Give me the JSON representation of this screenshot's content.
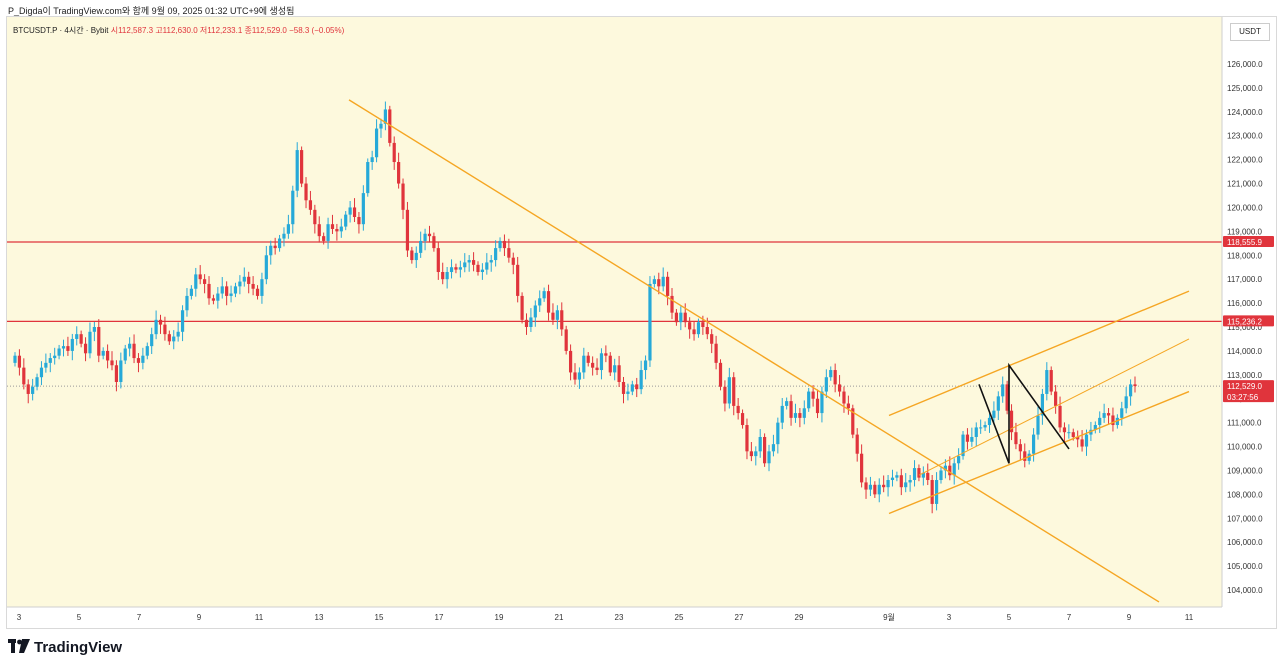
{
  "header": {
    "caption": "P_Digda이 TradingView.com와 함께 9월 09, 2025 01:32 UTC+9에 생성됨"
  },
  "symbol_bar": {
    "symbol": "BTCUSDT.P · 4시간 · Bybit",
    "open": "시112,587.3",
    "high": "고112,630.0",
    "low": "저112,233.1",
    "close": "종112,529.0",
    "change": "−58.3 (−0.05%)"
  },
  "price_axis": {
    "unit": "USDT",
    "ticks": [
      "126,000.0",
      "125,000.0",
      "124,000.0",
      "123,000.0",
      "122,000.0",
      "121,000.0",
      "120,000.0",
      "119,000.0",
      "118,000.0",
      "117,000.0",
      "116,000.0",
      "115,000.0",
      "114,000.0",
      "113,000.0",
      "112,000.0",
      "111,000.0",
      "110,000.0",
      "109,000.0",
      "108,000.0",
      "107,000.0",
      "106,000.0",
      "105,000.0",
      "104,000.0"
    ],
    "labels": {
      "resistance_top": "118,555.9",
      "resistance_mid": "115,236.2",
      "last_price": "112,529.0",
      "countdown": "03:27:56"
    }
  },
  "time_axis": {
    "ticks": [
      "3",
      "5",
      "7",
      "9",
      "11",
      "13",
      "15",
      "17",
      "19",
      "21",
      "23",
      "25",
      "27",
      "29",
      "9월",
      "3",
      "5",
      "7",
      "9",
      "11"
    ]
  },
  "brand": {
    "name": "TradingView"
  },
  "colors": {
    "up": "#26a9d8",
    "down": "#e0343c",
    "trendline": "#f5a623",
    "level": "#e0343c",
    "background": "#fdf9dd"
  },
  "chart_data": {
    "type": "candlestick",
    "symbol": "BTCUSDT.P",
    "interval": "4h",
    "ylim": [
      103400,
      126600
    ],
    "x_range_days": [
      "Aug 3",
      "Sep 11"
    ],
    "horizontal_levels": [
      118555.9,
      115236.2
    ],
    "last_price": 112529.0,
    "drawings": [
      {
        "kind": "descending trendline",
        "from": [
          "Aug 14",
          "124500"
        ],
        "to": [
          "Sep 10",
          "103500"
        ]
      },
      {
        "kind": "rising channel upper",
        "from": [
          "Sep 1",
          "111300"
        ],
        "to": [
          "Sep 11",
          "116500"
        ]
      },
      {
        "kind": "rising channel lower",
        "from": [
          "Sep 1",
          "107200"
        ],
        "to": [
          "Sep 11",
          "112300"
        ]
      },
      {
        "kind": "channel midline",
        "from": [
          "Sep 2",
          "108800"
        ],
        "to": [
          "Sep 11",
          "114500"
        ]
      },
      {
        "kind": "zigzag",
        "points": [
          [
            "Sep 4",
            "112600"
          ],
          [
            "Sep 5",
            "109300"
          ],
          [
            "Sep 5",
            "113400"
          ],
          [
            "Sep 7",
            "109900"
          ]
        ]
      }
    ],
    "closes": [
      113800,
      113300,
      112600,
      112200,
      112500,
      112900,
      113300,
      113500,
      113700,
      113800,
      114100,
      114200,
      114000,
      114500,
      114700,
      114300,
      113900,
      114800,
      115000,
      113800,
      114000,
      113600,
      113400,
      112700,
      113600,
      114100,
      114300,
      113700,
      113500,
      113800,
      114200,
      114700,
      115300,
      115100,
      114700,
      114400,
      114600,
      114800,
      115700,
      116300,
      116600,
      117200,
      117000,
      116800,
      116200,
      116100,
      116400,
      116700,
      116300,
      116400,
      116700,
      116900,
      117100,
      116800,
      116600,
      116300,
      117000,
      118000,
      118400,
      118300,
      118700,
      118900,
      119300,
      120700,
      122400,
      121000,
      120300,
      119900,
      119300,
      118800,
      118600,
      119300,
      119100,
      119000,
      119200,
      119700,
      120000,
      119600,
      119300,
      120600,
      121900,
      122100,
      123300,
      123500,
      124100,
      122700,
      121900,
      121000,
      119900,
      118200,
      117800,
      118100,
      118600,
      118900,
      118800,
      118300,
      117300,
      117000,
      117300,
      117500,
      117400,
      117500,
      117700,
      117800,
      117600,
      117300,
      117400,
      117700,
      117800,
      118300,
      118600,
      118300,
      117900,
      117600,
      116300,
      115300,
      115000,
      115400,
      115900,
      116200,
      116500,
      115600,
      115300,
      115700,
      114900,
      114000,
      113100,
      112800,
      113100,
      113800,
      113500,
      113300,
      113200,
      113900,
      113800,
      113100,
      113400,
      112700,
      112200,
      112300,
      112600,
      112400,
      113200,
      113600,
      116800,
      117000,
      116700,
      117100,
      116300,
      115600,
      115200,
      115600,
      115200,
      114900,
      114700,
      115200,
      115000,
      114700,
      114300,
      113500,
      112500,
      111800,
      112900,
      111700,
      111400,
      110900,
      109800,
      109600,
      109800,
      110400,
      109300,
      109800,
      110100,
      111000,
      111700,
      111900,
      111200,
      111400,
      111200,
      111600,
      112300,
      112000,
      111400,
      112300,
      112900,
      113200,
      112600,
      112300,
      111800,
      111600,
      110500,
      109700,
      108500,
      108200,
      108400,
      108000,
      108400,
      108300,
      108600,
      108700,
      108800,
      108300,
      108500,
      108600,
      109100,
      108700,
      108900,
      108600,
      107600,
      108600,
      109000,
      109200,
      108800,
      109300,
      109600,
      110500,
      110200,
      110400,
      110800,
      110800,
      110900,
      111200,
      111500,
      112100,
      112600,
      111500,
      110600,
      110100,
      109800,
      109400,
      109700,
      110500,
      111300,
      112200,
      113200,
      112300,
      111700,
      110800,
      110600,
      110600,
      110400,
      110300,
      110000,
      110500,
      110700,
      110900,
      111200,
      111400,
      111300,
      110900,
      111200,
      111600,
      112100,
      112600,
      112530
    ]
  }
}
